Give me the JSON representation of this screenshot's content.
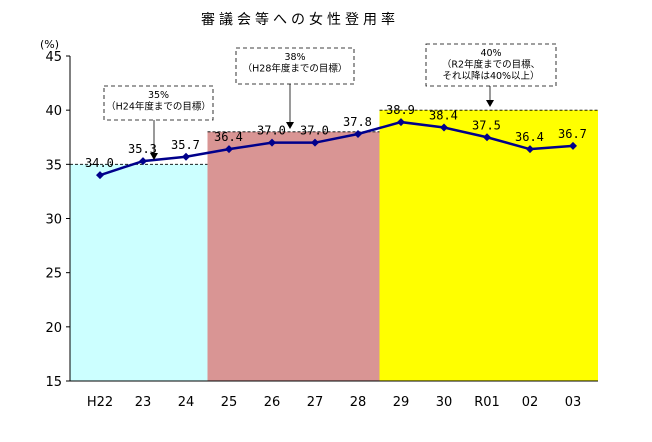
{
  "chart_data": {
    "type": "line",
    "title": "審議会等への女性登用率",
    "ylabel": "(%)",
    "xlabel": "",
    "ylim": [
      15,
      45
    ],
    "yticks": [
      15,
      20,
      25,
      30,
      35,
      40,
      45
    ],
    "grid": false,
    "categories": [
      "H22",
      "23",
      "24",
      "25",
      "26",
      "27",
      "28",
      "29",
      "30",
      "R01",
      "02",
      "03"
    ],
    "values": [
      34.0,
      35.3,
      35.7,
      36.4,
      37.0,
      37.0,
      37.8,
      38.9,
      38.4,
      37.5,
      36.4,
      36.7
    ],
    "data_labels": [
      "34.0",
      "35.3",
      "35.7",
      "36.4",
      "37.0",
      "37.0",
      "37.8",
      "38.9",
      "38.4",
      "37.5",
      "36.4",
      "36.7"
    ],
    "line_color": "#00008b",
    "target_bands": [
      {
        "from": "H22",
        "to": "24",
        "value": 35,
        "color": "#ccffff",
        "annotation": [
          "35%",
          "（H24年度までの目標）"
        ]
      },
      {
        "from": "25",
        "to": "28",
        "value": 38,
        "color": "#d99594",
        "annotation": [
          "38%",
          "（H28年度までの目標）"
        ]
      },
      {
        "from": "29",
        "to": "03",
        "value": 40,
        "color": "#ffff00",
        "annotation": [
          "40%",
          "（R2年度までの目標、",
          "それ以降は40%以上）"
        ]
      }
    ]
  }
}
